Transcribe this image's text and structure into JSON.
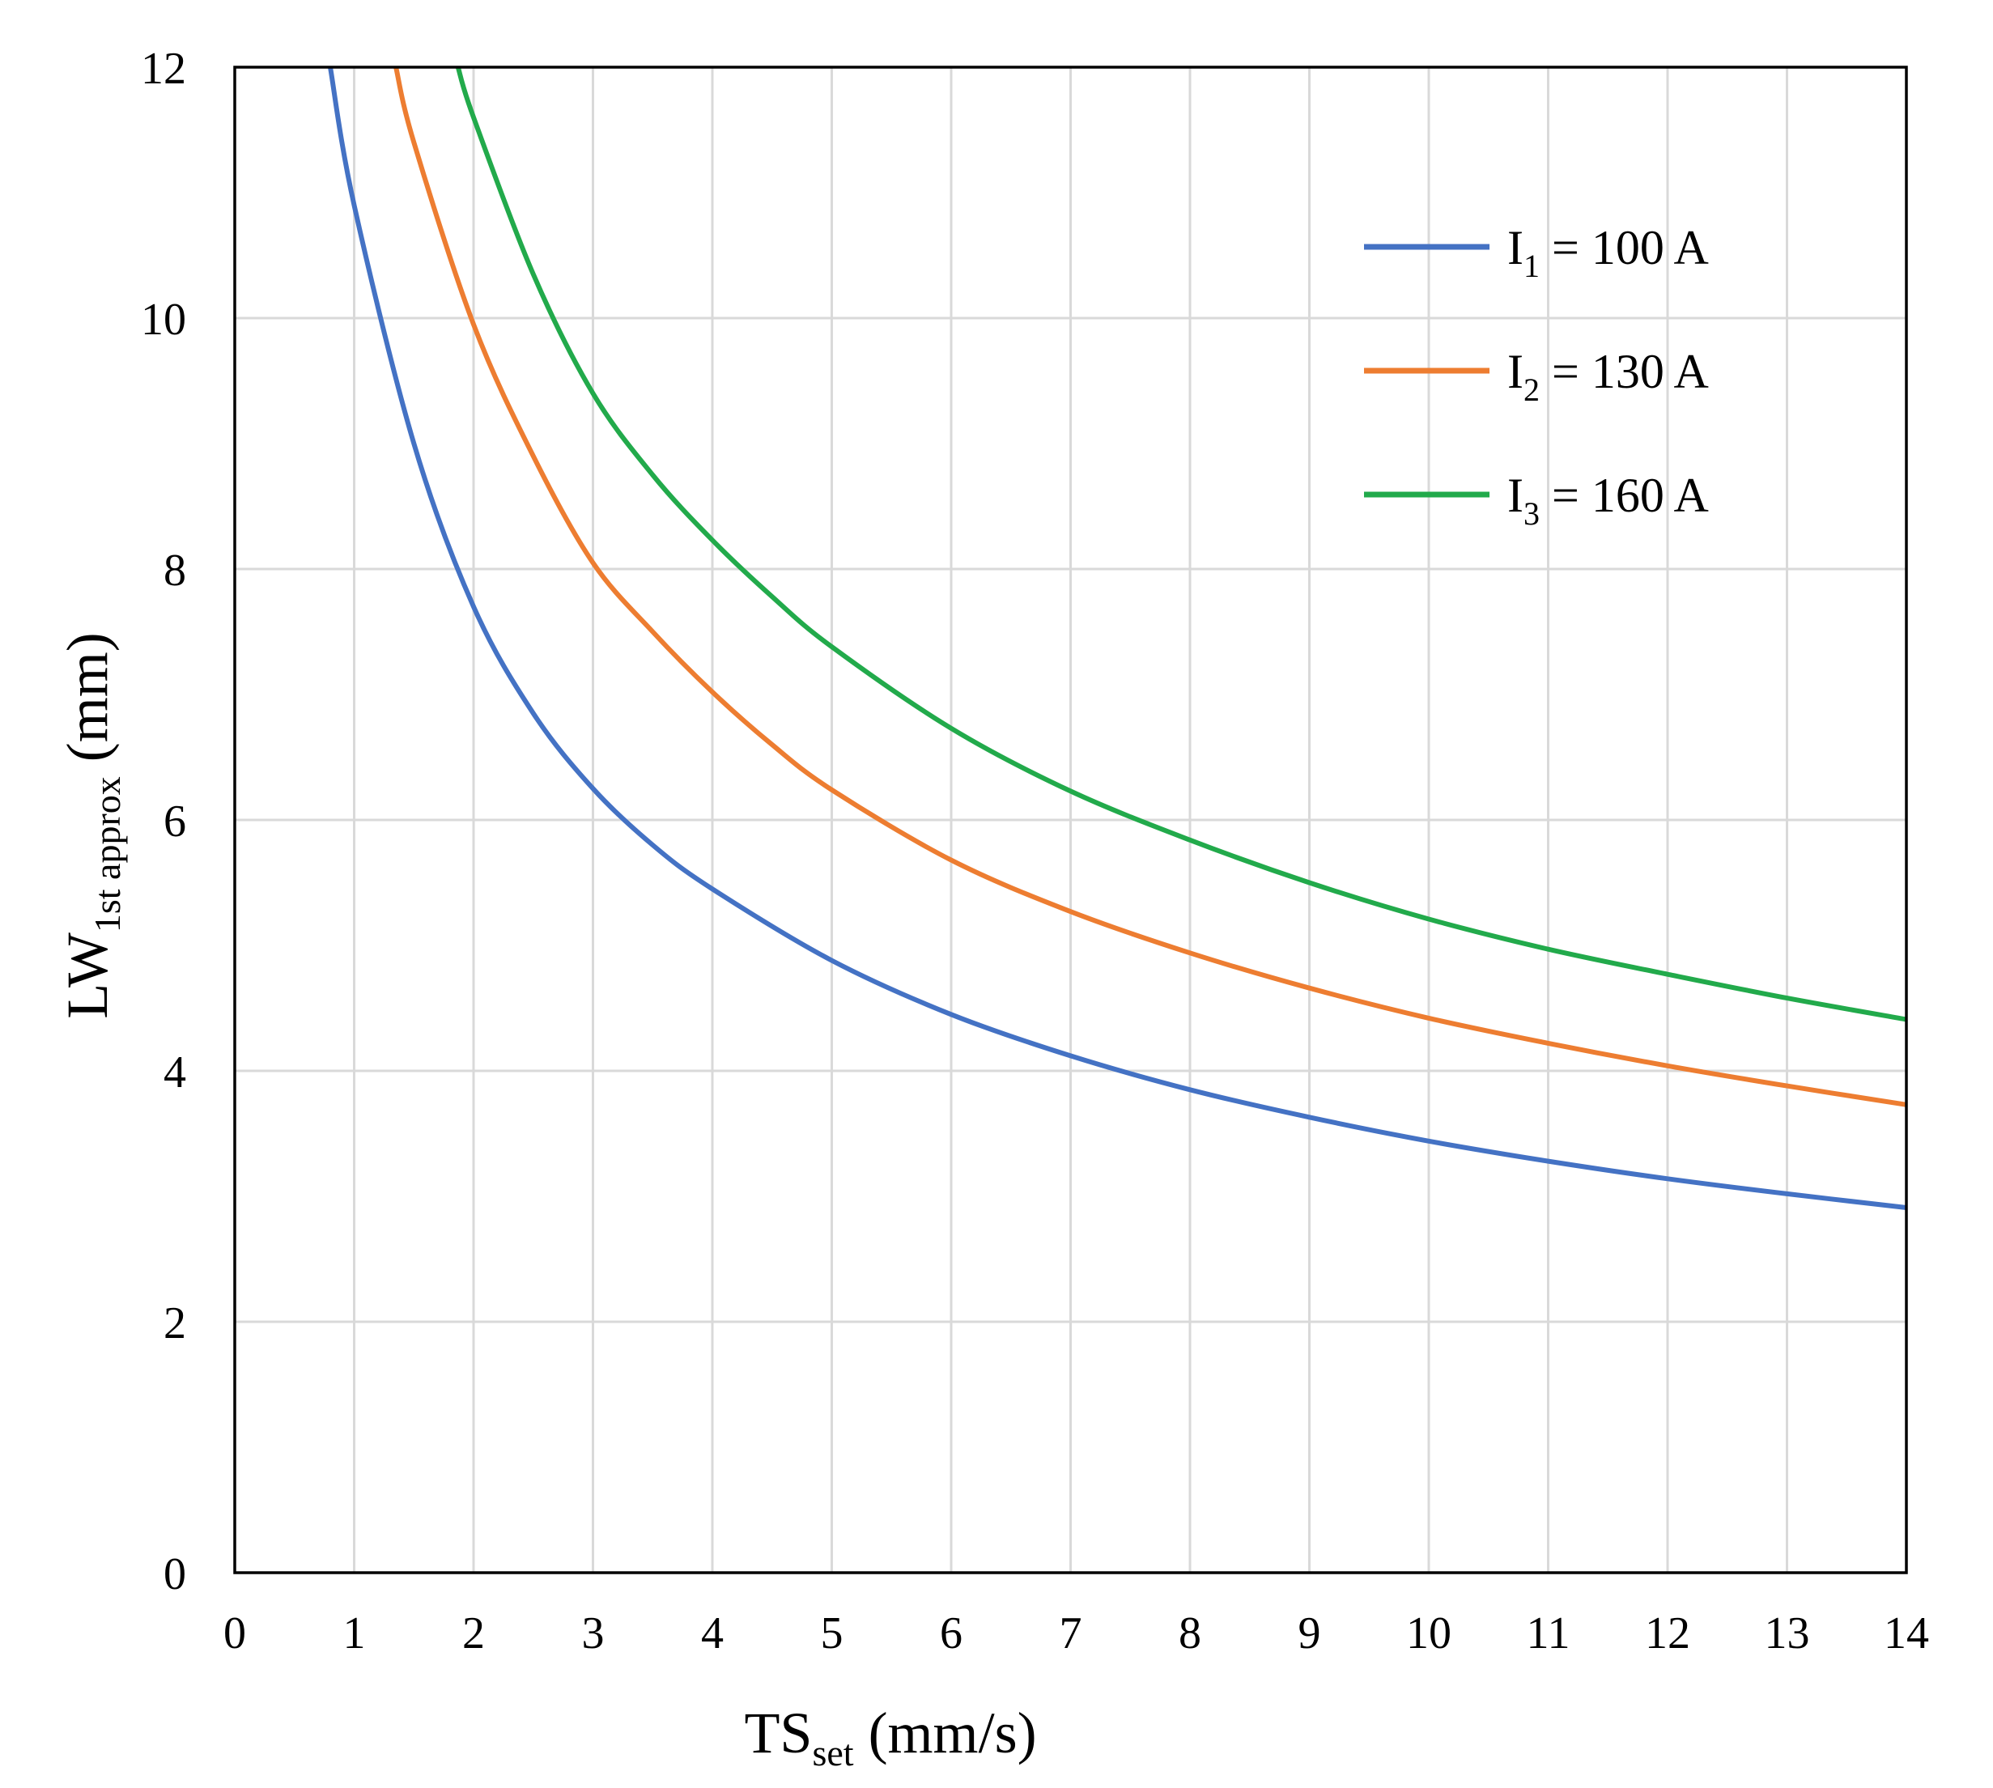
{
  "chart_data": {
    "type": "line",
    "title": "",
    "xlabel": {
      "main": "TS",
      "sub": "set",
      "units": " (mm/s)"
    },
    "ylabel": {
      "main": "LW",
      "sub": "1st approx",
      "units": " (mm)"
    },
    "xlim": [
      0,
      14
    ],
    "ylim": [
      0,
      12
    ],
    "xticks": [
      0,
      1,
      2,
      3,
      4,
      5,
      6,
      7,
      8,
      9,
      10,
      11,
      12,
      13,
      14
    ],
    "yticks": [
      0,
      2,
      4,
      6,
      8,
      10,
      12
    ],
    "grid": true,
    "legend_position": "top-right",
    "series": [
      {
        "name": "I1 = 100 A",
        "label_main": "I",
        "label_sub": "1",
        "label_rest": " = 100 A",
        "color": "#4472C4",
        "points": [
          [
            0.8,
            12.0
          ],
          [
            1.0,
            10.9
          ],
          [
            1.5,
            9.0
          ],
          [
            2.0,
            7.7
          ],
          [
            2.5,
            6.85
          ],
          [
            3.0,
            6.25
          ],
          [
            3.5,
            5.8
          ],
          [
            4.0,
            5.45
          ],
          [
            5.0,
            4.88
          ],
          [
            6.0,
            4.45
          ],
          [
            7.0,
            4.12
          ],
          [
            8.0,
            3.85
          ],
          [
            9.0,
            3.63
          ],
          [
            10.0,
            3.44
          ],
          [
            11.0,
            3.28
          ],
          [
            12.0,
            3.14
          ],
          [
            13.0,
            3.02
          ],
          [
            14.0,
            2.91
          ]
        ]
      },
      {
        "name": "I2 = 130 A",
        "label_main": "I",
        "label_sub": "2",
        "label_rest": " = 130 A",
        "color": "#ED7D31",
        "points": [
          [
            1.35,
            12.0
          ],
          [
            1.5,
            11.4
          ],
          [
            2.0,
            9.95
          ],
          [
            2.5,
            8.9
          ],
          [
            3.0,
            8.05
          ],
          [
            3.5,
            7.5
          ],
          [
            4.0,
            7.02
          ],
          [
            4.5,
            6.6
          ],
          [
            5.0,
            6.24
          ],
          [
            6.0,
            5.68
          ],
          [
            7.0,
            5.27
          ],
          [
            8.0,
            4.94
          ],
          [
            9.0,
            4.66
          ],
          [
            10.0,
            4.42
          ],
          [
            11.0,
            4.22
          ],
          [
            12.0,
            4.04
          ],
          [
            13.0,
            3.88
          ],
          [
            14.0,
            3.73
          ]
        ]
      },
      {
        "name": "I3 = 160 A",
        "label_main": "I",
        "label_sub": "3",
        "label_rest": " = 160 A",
        "color": "#22AA4B",
        "points": [
          [
            1.87,
            12.0
          ],
          [
            2.0,
            11.6
          ],
          [
            2.5,
            10.35
          ],
          [
            3.0,
            9.4
          ],
          [
            3.5,
            8.75
          ],
          [
            4.0,
            8.23
          ],
          [
            4.5,
            7.78
          ],
          [
            5.0,
            7.38
          ],
          [
            6.0,
            6.73
          ],
          [
            7.0,
            6.23
          ],
          [
            8.0,
            5.84
          ],
          [
            9.0,
            5.5
          ],
          [
            10.0,
            5.21
          ],
          [
            11.0,
            4.97
          ],
          [
            12.0,
            4.77
          ],
          [
            13.0,
            4.58
          ],
          [
            14.0,
            4.41
          ]
        ]
      }
    ]
  }
}
